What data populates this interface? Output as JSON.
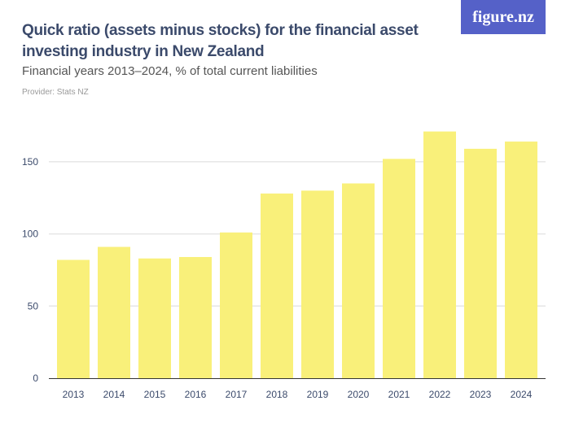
{
  "header": {
    "title": "Quick ratio (assets minus stocks) for the financial asset investing industry in New Zealand",
    "subtitle": "Financial years 2013–2024, % of total current liabilities",
    "provider": "Provider: Stats NZ",
    "logo": "figure.nz"
  },
  "colors": {
    "bar": "#f9f07a",
    "grid": "#e6e6e6",
    "logo_bg": "#5561c8"
  },
  "chart_data": {
    "type": "bar",
    "title": "Quick ratio (assets minus stocks) for the financial asset investing industry in New Zealand",
    "subtitle": "Financial years 2013–2024, % of total current liabilities",
    "xlabel": "",
    "ylabel": "",
    "categories": [
      "2013",
      "2014",
      "2015",
      "2016",
      "2017",
      "2018",
      "2019",
      "2020",
      "2021",
      "2022",
      "2023",
      "2024"
    ],
    "values": [
      82,
      91,
      83,
      84,
      101,
      128,
      130,
      135,
      152,
      171,
      159,
      164
    ],
    "ylim": [
      0,
      180
    ],
    "yticks": [
      0,
      50,
      100,
      150
    ],
    "grid": true,
    "legend": "none"
  }
}
